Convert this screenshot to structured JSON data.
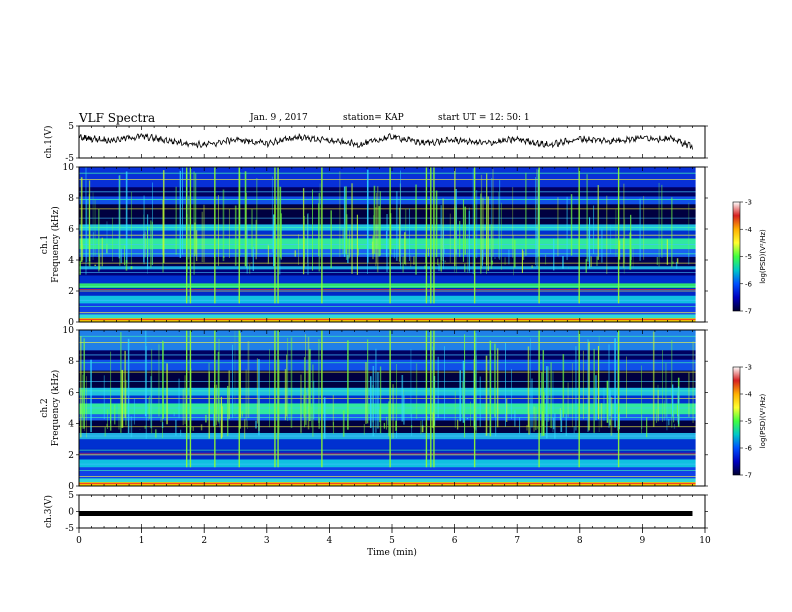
{
  "header": {
    "title": "VLF Spectra",
    "date": "Jan. 9 , 2017",
    "station": "station= KAP",
    "start": "start UT =  12: 50: 1"
  },
  "colorbar": {
    "label": "log(PSD)(V²/Hz)",
    "ticks": [
      "-3",
      "-4",
      "-5",
      "-6",
      "-7"
    ],
    "colors": [
      "#ffffff",
      "#d62020",
      "#ffb000",
      "#ffff30",
      "#40ff40",
      "#00c8c8",
      "#0050ff",
      "#0000c0",
      "#000030"
    ]
  },
  "chart_data": [
    {
      "type": "line",
      "name": "ch.1 waveform",
      "ylabel": "ch.1(V)",
      "ylim": [
        -5,
        5
      ],
      "xlim": [
        0,
        10
      ],
      "yticks": [
        "5",
        "-5"
      ],
      "note_values": "approximate waveform amplitude vs time (min)",
      "x": [
        0,
        0.5,
        1,
        1.5,
        2,
        2.5,
        3,
        3.5,
        4,
        4.5,
        5,
        5.5,
        6,
        6.5,
        7,
        7.5,
        8,
        8.5,
        9,
        9.5,
        9.8
      ],
      "y": [
        1.5,
        0.5,
        1.8,
        0.2,
        -1.0,
        0.8,
        -0.5,
        1.6,
        0.4,
        -0.8,
        1.7,
        -0.3,
        0.6,
        -0.4,
        0.9,
        -1.0,
        1.0,
        0.3,
        1.4,
        0.8,
        -1.4
      ]
    },
    {
      "type": "heatmap",
      "name": "ch.1 spectrogram",
      "ylabel": "ch.1",
      "ylabel2": "Frequency (kHz)",
      "ylim": [
        0,
        10
      ],
      "xlim": [
        0,
        10
      ],
      "yticks": [
        "0",
        "2",
        "4",
        "6",
        "8",
        "10"
      ],
      "clim": [
        -7,
        -3
      ]
    },
    {
      "type": "heatmap",
      "name": "ch.2 spectrogram",
      "ylabel": "ch.2",
      "ylabel2": "Frequency (kHz)",
      "ylim": [
        0,
        10
      ],
      "xlim": [
        0,
        10
      ],
      "yticks": [
        "0",
        "2",
        "4",
        "6",
        "8",
        "10"
      ],
      "clim": [
        -7,
        -3
      ]
    },
    {
      "type": "line",
      "name": "ch.3 waveform",
      "ylabel": "ch.3(V)",
      "ylim": [
        -5,
        5
      ],
      "xlim": [
        0,
        10
      ],
      "yticks": [
        "5",
        "0",
        "-5"
      ],
      "x": [
        0,
        9.8
      ],
      "y": [
        0,
        0
      ]
    }
  ],
  "xaxis": {
    "label": "Time (min)",
    "ticks": [
      "0",
      "1",
      "2",
      "3",
      "4",
      "5",
      "6",
      "7",
      "8",
      "9",
      "10"
    ]
  }
}
